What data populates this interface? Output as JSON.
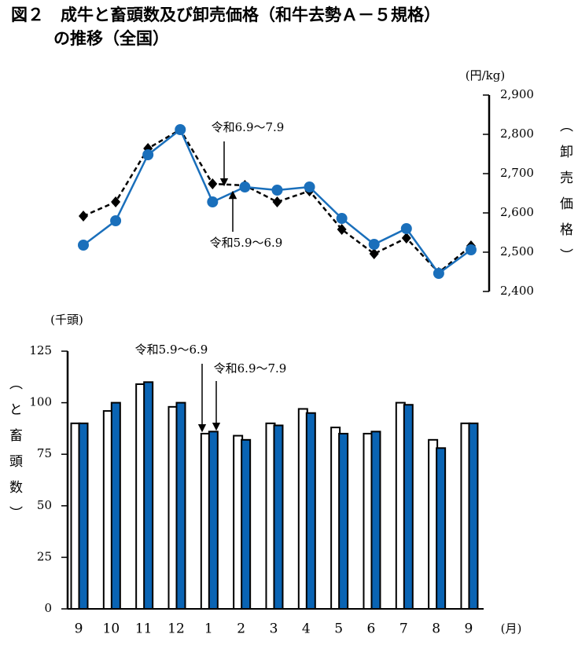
{
  "chart_data": [
    {
      "type": "line",
      "title": [
        "図２　成牛と畜頭数及び卸売価格（和牛去勢Ａ－５規格）",
        "の推移（全国）"
      ],
      "y_unit": "(円/kg)",
      "ylabel": "（卸売価格）",
      "axis_side": "right",
      "categories": [
        "9",
        "10",
        "11",
        "12",
        "1",
        "2",
        "3",
        "4",
        "5",
        "6",
        "7",
        "8",
        "9"
      ],
      "ylim": [
        2400,
        2900
      ],
      "yticks": [
        {
          "value": 2400,
          "label": "2,400"
        },
        {
          "value": 2500,
          "label": "2,500"
        },
        {
          "value": 2600,
          "label": "2,600"
        },
        {
          "value": 2700,
          "label": "2,700"
        },
        {
          "value": 2800,
          "label": "2,800"
        },
        {
          "value": 2900,
          "label": "2,900"
        }
      ],
      "series": [
        {
          "name": "令和6.9～7.9",
          "color": "#000000",
          "dashed": true,
          "marker": "diamond",
          "values": [
            2592,
            2628,
            2764,
            2812,
            2674,
            2670,
            2628,
            2656,
            2558,
            2496,
            2536,
            2448,
            2516
          ]
        },
        {
          "name": "令和5.9～6.9",
          "color": "#1a6fbb",
          "dashed": false,
          "marker": "circle",
          "values": [
            2518,
            2580,
            2748,
            2812,
            2628,
            2666,
            2658,
            2666,
            2586,
            2520,
            2560,
            2446,
            2506
          ]
        }
      ]
    },
    {
      "type": "bar",
      "y_unit": "(千頭)",
      "ylabel": "（と畜頭数）",
      "x_unit": "(月)",
      "axis_side": "left",
      "categories": [
        "9",
        "10",
        "11",
        "12",
        "1",
        "2",
        "3",
        "4",
        "5",
        "6",
        "7",
        "8",
        "9"
      ],
      "ylim": [
        0,
        125
      ],
      "yticks": [
        0,
        25,
        50,
        75,
        100,
        125
      ],
      "series": [
        {
          "name": "令和5.9～6.9",
          "color": "#ffffff",
          "edgecolor": "#000000",
          "values": [
            90,
            96,
            109,
            98,
            85,
            84,
            90,
            97,
            88,
            85,
            100,
            82,
            90
          ]
        },
        {
          "name": "令和6.9～7.9",
          "color": "#0a64b4",
          "edgecolor": "#000000",
          "values": [
            90,
            100,
            110,
            100,
            86,
            82,
            89,
            95,
            85,
            86,
            99,
            78,
            90
          ]
        }
      ]
    }
  ]
}
